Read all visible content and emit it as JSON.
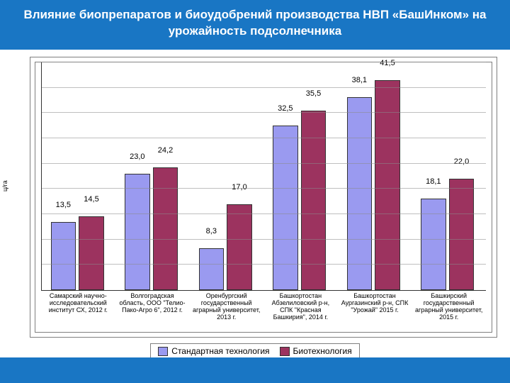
{
  "title": "Влияние биопрепаратов и биоудобрений производства НВП «БашИнком» на урожайность подсолнечника",
  "ylabel": "ц/га",
  "chart": {
    "type": "bar",
    "ymax": 45,
    "grid_step": 5,
    "bar_colors": {
      "standard": "#9a9af0",
      "bio": "#9c335f"
    },
    "grid_color": "#8a8a8a",
    "border_color": "#7f7f7f",
    "background": "#ffffff",
    "series_labels": {
      "standard": "Стандартная технология",
      "bio": "Биотехнология"
    },
    "label_fontsize": 9,
    "value_fontsize": 11,
    "categories": [
      {
        "label": "Самарский научно-исследовательский институт СХ, 2012 г.",
        "standard": 13.5,
        "bio": 14.5
      },
      {
        "label": "Волгоградская область, ООО \"Телио-Пако-Агро 6\", 2012 г.",
        "standard": 23.0,
        "bio": 24.2
      },
      {
        "label": "Оренбургский государственный аграрный университет, 2013 г.",
        "standard": 8.3,
        "bio": 17.0
      },
      {
        "label": "Башкортостан Абзелиловский р-н, СПК \"Красная Башкирия\", 2014 г.",
        "standard": 32.5,
        "bio": 35.5
      },
      {
        "label": "Башкортостан Аургазинский р-н, СПК \"Урожай\" 2015 г.",
        "standard": 38.1,
        "bio": 41.5
      },
      {
        "label": "Башкирский государственный аграрный университет, 2015 г.",
        "standard": 18.1,
        "bio": 22.0
      }
    ]
  },
  "colors": {
    "header_bg": "#1976c4",
    "header_text": "#ffffff"
  }
}
